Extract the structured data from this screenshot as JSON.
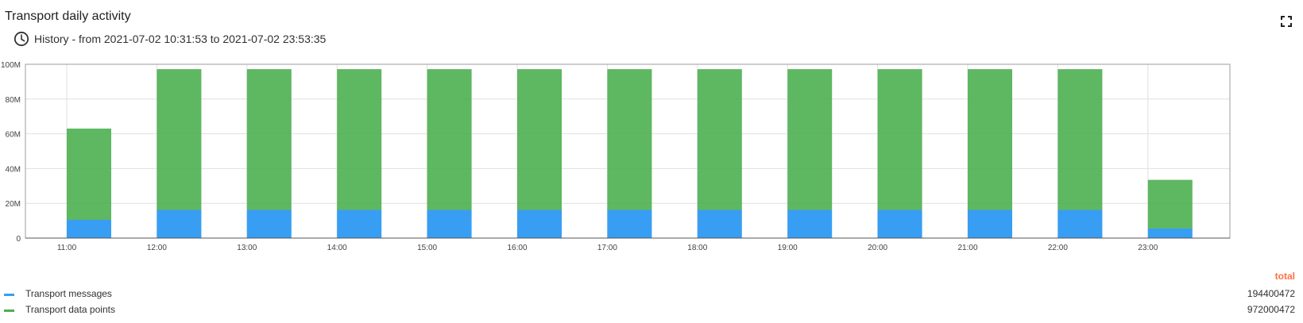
{
  "widget": {
    "title": "Transport daily activity",
    "history_label": "History - from 2021-07-02 10:31:53 to 2021-07-02 23:53:35",
    "clock_icon": "clock-icon",
    "fullscreen_icon": "fullscreen-icon"
  },
  "legend": {
    "total_header": "total",
    "items": [
      {
        "label": "Transport messages",
        "total": "194400472",
        "color": "#379ef4"
      },
      {
        "label": "Transport data points",
        "total": "972000472",
        "color": "#4caf50"
      }
    ]
  },
  "chart_data": {
    "type": "bar",
    "stacked": true,
    "categories": [
      "11:00",
      "12:00",
      "13:00",
      "14:00",
      "15:00",
      "16:00",
      "17:00",
      "18:00",
      "19:00",
      "20:00",
      "21:00",
      "22:00",
      "23:00"
    ],
    "series": [
      {
        "name": "Transport messages",
        "color": "#379ef4",
        "values": [
          10.5,
          16.2,
          16.2,
          16.2,
          16.2,
          16.2,
          16.2,
          16.2,
          16.2,
          16.2,
          16.2,
          16.2,
          5.5
        ]
      },
      {
        "name": "Transport data points",
        "color": "#4caf50",
        "values": [
          52.5,
          81,
          81,
          81,
          81,
          81,
          81,
          81,
          81,
          81,
          81,
          81,
          28
        ]
      }
    ],
    "yticks": [
      "0",
      "20M",
      "40M",
      "60M",
      "80M",
      "100M"
    ],
    "ylim": [
      0,
      100
    ],
    "grid": true,
    "legend_position": "bottom"
  }
}
